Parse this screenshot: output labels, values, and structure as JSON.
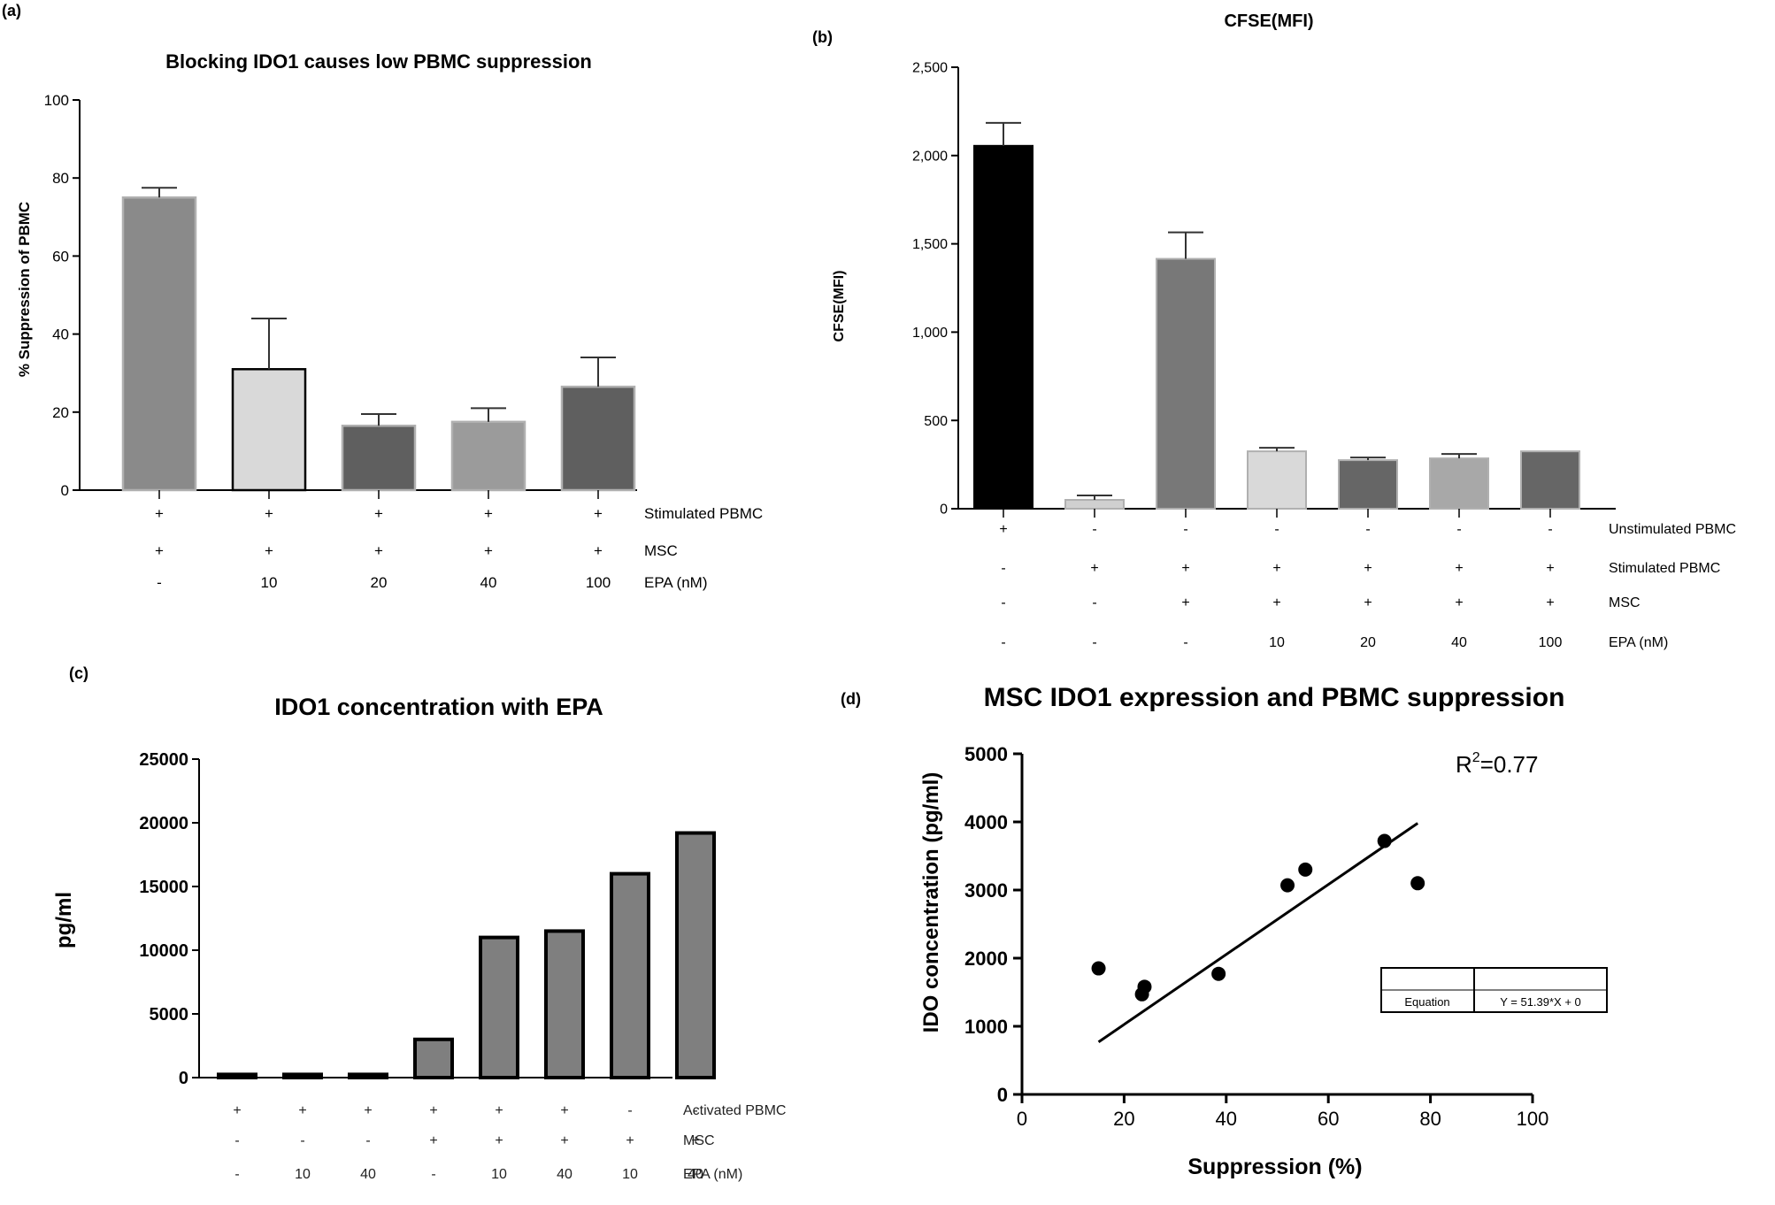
{
  "chart_data": [
    {
      "panel": "(a)",
      "type": "bar",
      "title": "Blocking IDO1 causes low PBMC suppression",
      "ylabel": "%  Suppression of PBMC",
      "ylim": [
        0,
        100
      ],
      "yticks": [
        0,
        20,
        40,
        60,
        80,
        100
      ],
      "values": [
        75,
        31,
        16.5,
        17.5,
        26.5
      ],
      "errors": [
        2.5,
        13,
        3,
        3.5,
        7.5
      ],
      "colors": [
        "#8a8a8a",
        "#d9d9d9",
        "#5f5f5f",
        "#9b9b9b",
        "#5f5f5f"
      ],
      "strokes": [
        "#b0b0b0",
        "#000000",
        "#b0b0b0",
        "#b0b0b0",
        "#b0b0b0"
      ],
      "condition_rows": [
        {
          "label": "Stimulated PBMC",
          "values": [
            "+",
            "+",
            "+",
            "+",
            "+"
          ]
        },
        {
          "label": "MSC",
          "values": [
            "+",
            "+",
            "+",
            "+",
            "+"
          ]
        },
        {
          "label": "EPA (nM)",
          "values": [
            "-",
            "10",
            "20",
            "40",
            "100"
          ]
        }
      ]
    },
    {
      "panel": "(b)",
      "type": "bar",
      "title": "CFSE(MFI)",
      "ylabel": "CFSE(MFI)",
      "ylim": [
        0,
        2500
      ],
      "yticks": [
        0,
        500,
        1000,
        1500,
        2000,
        2500
      ],
      "ytick_labels": [
        "0",
        "500",
        "1,000",
        "1,500",
        "2,000",
        "2,500"
      ],
      "values": [
        2055,
        50,
        1415,
        325,
        275,
        285,
        325
      ],
      "errors": [
        130,
        25,
        150,
        20,
        15,
        25,
        0
      ],
      "colors": [
        "#000000",
        "#d0d0d0",
        "#787878",
        "#d9d9d9",
        "#666666",
        "#a8a8a8",
        "#666666"
      ],
      "strokes": [
        "#000000",
        "#b0b0b0",
        "#b0b0b0",
        "#b0b0b0",
        "#b0b0b0",
        "#b0b0b0",
        "#b0b0b0"
      ],
      "condition_rows": [
        {
          "label": "Unstimulated PBMC",
          "values": [
            "+",
            "-",
            "-",
            "-",
            "-",
            "-",
            "-"
          ]
        },
        {
          "label": "Stimulated PBMC",
          "values": [
            "-",
            "+",
            "+",
            "+",
            "+",
            "+",
            "+"
          ]
        },
        {
          "label": "MSC",
          "values": [
            "-",
            "-",
            "+",
            "+",
            "+",
            "+",
            "+"
          ]
        },
        {
          "label": "EPA (nM)",
          "values": [
            "-",
            "-",
            "-",
            "10",
            "20",
            "40",
            "100"
          ]
        }
      ]
    },
    {
      "panel": "(c)",
      "type": "bar",
      "title": "IDO1 concentration with EPA",
      "ylabel": "pg/ml",
      "ylim": [
        0,
        25000
      ],
      "yticks": [
        0,
        5000,
        10000,
        15000,
        20000,
        25000
      ],
      "values": [
        250,
        250,
        250,
        3000,
        11000,
        11500,
        16000,
        19200
      ],
      "color": "#7f7f7f",
      "condition_rows": [
        {
          "label": "Activated PBMC",
          "values": [
            "+",
            "+",
            "+",
            "+",
            "+",
            "+",
            "-",
            "-"
          ]
        },
        {
          "label": "MSC",
          "values": [
            "-",
            "-",
            "-",
            "+",
            "+",
            "+",
            "+",
            "+"
          ]
        },
        {
          "label": "EPA (nM)",
          "values": [
            "-",
            "10",
            "40",
            "-",
            "10",
            "40",
            "10",
            "40"
          ]
        }
      ]
    },
    {
      "panel": "(d)",
      "type": "scatter",
      "title": "MSC IDO1 expression and PBMC suppression",
      "xlabel": "Suppression (%)",
      "ylabel": "IDO concentration (pg/ml)",
      "xlim": [
        0,
        100
      ],
      "ylim": [
        0,
        5000
      ],
      "xticks": [
        0,
        20,
        40,
        60,
        80,
        100
      ],
      "yticks": [
        0,
        1000,
        2000,
        3000,
        4000,
        5000
      ],
      "points": [
        {
          "x": 15,
          "y": 1850
        },
        {
          "x": 23.5,
          "y": 1470
        },
        {
          "x": 24,
          "y": 1580
        },
        {
          "x": 38.5,
          "y": 1770
        },
        {
          "x": 52,
          "y": 3070
        },
        {
          "x": 55.5,
          "y": 3300
        },
        {
          "x": 71,
          "y": 3720
        },
        {
          "x": 77.5,
          "y": 3100
        }
      ],
      "fit": {
        "x0": 15,
        "y0": 770,
        "x1": 77.5,
        "y1": 3980
      },
      "annotation_r2_main": "R",
      "annotation_r2_sup": "2",
      "annotation_r2_value": "=0.77",
      "equation_table": {
        "label": "Equation",
        "value": "Y = 51.39*X + 0"
      }
    }
  ]
}
